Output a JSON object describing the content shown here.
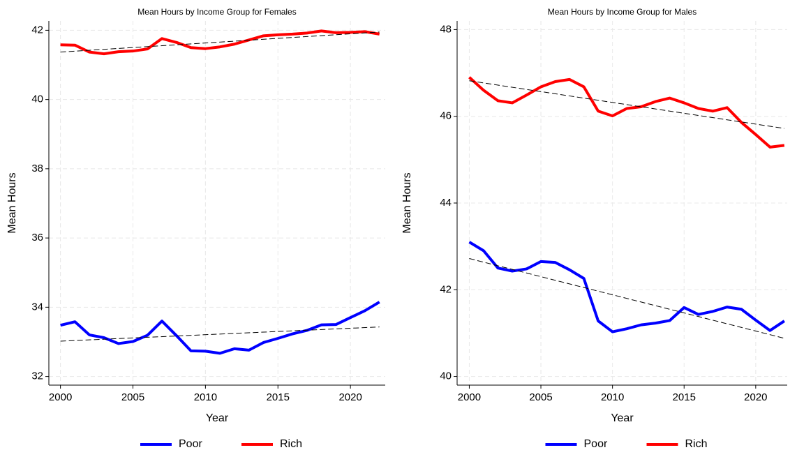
{
  "chart_data": [
    {
      "type": "line",
      "title": "Mean Hours by Income Group for Females",
      "x_label": "Year",
      "y_label": "Mean Hours",
      "x": [
        2000,
        2001,
        2002,
        2003,
        2004,
        2005,
        2006,
        2007,
        2008,
        2009,
        2010,
        2011,
        2012,
        2013,
        2014,
        2015,
        2016,
        2017,
        2018,
        2019,
        2020,
        2021,
        2022
      ],
      "series": [
        {
          "name": "Poor",
          "color": "#0000ff",
          "values": [
            33.48,
            33.58,
            33.2,
            33.12,
            32.95,
            33.01,
            33.19,
            33.6,
            33.18,
            32.74,
            32.73,
            32.67,
            32.8,
            32.76,
            32.98,
            33.1,
            33.23,
            33.33,
            33.49,
            33.5,
            33.7,
            33.9,
            34.15
          ]
        },
        {
          "name": "Rich",
          "color": "#ff0000",
          "values": [
            41.58,
            41.57,
            41.37,
            41.32,
            41.38,
            41.4,
            41.46,
            41.76,
            41.65,
            41.5,
            41.47,
            41.52,
            41.6,
            41.72,
            41.84,
            41.87,
            41.89,
            41.92,
            41.98,
            41.93,
            41.94,
            41.96,
            41.89
          ]
        }
      ],
      "trend_lines": [
        {
          "color": "#000000",
          "x": [
            2000,
            2022
          ],
          "values": [
            33.02,
            33.43
          ]
        },
        {
          "color": "#000000",
          "x": [
            2000,
            2022
          ],
          "values": [
            41.37,
            41.95
          ]
        }
      ],
      "xlim": [
        1999.2,
        2022.4
      ],
      "xticks": [
        2000,
        2005,
        2010,
        2015,
        2020
      ],
      "ylim": [
        31.75,
        42.27
      ],
      "yticks": [
        32,
        34,
        36,
        38,
        40,
        42
      ],
      "grid": true
    },
    {
      "type": "line",
      "title": "Mean Hours by Income Group for Males",
      "x_label": "Year",
      "y_label": "Mean Hours",
      "x": [
        2000,
        2001,
        2002,
        2003,
        2004,
        2005,
        2006,
        2007,
        2008,
        2009,
        2010,
        2011,
        2012,
        2013,
        2014,
        2015,
        2016,
        2017,
        2018,
        2019,
        2020,
        2021,
        2022
      ],
      "series": [
        {
          "name": "Poor",
          "color": "#0000ff",
          "values": [
            43.1,
            42.9,
            42.5,
            42.43,
            42.48,
            42.65,
            42.63,
            42.46,
            42.26,
            41.28,
            41.03,
            41.1,
            41.19,
            41.23,
            41.29,
            41.59,
            41.43,
            41.5,
            41.6,
            41.55,
            41.3,
            41.06,
            41.28
          ]
        },
        {
          "name": "Rich",
          "color": "#ff0000",
          "values": [
            46.9,
            46.6,
            46.36,
            46.31,
            46.49,
            46.68,
            46.8,
            46.85,
            46.68,
            46.12,
            46.01,
            46.18,
            46.22,
            46.34,
            46.42,
            46.31,
            46.18,
            46.12,
            46.2,
            45.86,
            45.58,
            45.29,
            45.33
          ]
        }
      ],
      "trend_lines": [
        {
          "color": "#000000",
          "x": [
            2000,
            2022
          ],
          "values": [
            42.72,
            40.88
          ]
        },
        {
          "color": "#000000",
          "x": [
            2000,
            2022
          ],
          "values": [
            46.82,
            45.72
          ]
        }
      ],
      "xlim": [
        1999.15,
        2022.2
      ],
      "xticks": [
        2000,
        2005,
        2010,
        2015,
        2020
      ],
      "ylim": [
        39.8,
        48.2
      ],
      "yticks": [
        40,
        42,
        44,
        46,
        48
      ],
      "grid": true
    }
  ]
}
